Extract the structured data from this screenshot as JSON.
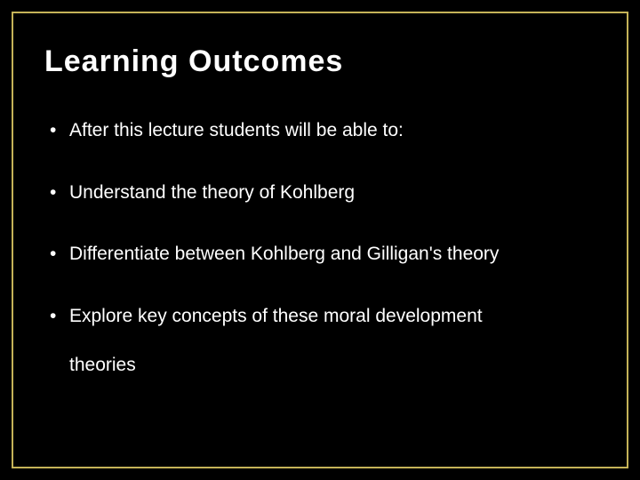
{
  "slide": {
    "title": "Learning Outcomes",
    "bullets": [
      "After this lecture students will be able to:",
      "Understand the theory of Kohlberg",
      "Differentiate between Kohlberg and Gilligan's theory",
      "Explore key concepts of these moral development",
      "theories"
    ],
    "background_color": "#000000",
    "border_color": "#c5b358",
    "text_color": "#ffffff",
    "title_fontsize": 34,
    "body_fontsize": 21
  }
}
